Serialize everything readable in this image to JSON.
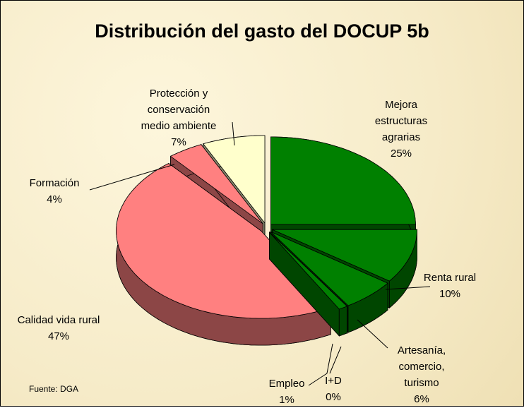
{
  "chart_data": {
    "type": "pie",
    "title": "Distribución del gasto del DOCUP 5b",
    "categories": [
      "Mejora\nestructuras\nagrarias",
      "Renta rural",
      "Artesanía,\ncomercio,\nturismo",
      "I+D",
      "Empleo",
      "Calidad vida rural",
      "Formación",
      "Protección y\nconservación\nmedio ambiente"
    ],
    "values": [
      25,
      10,
      6,
      0,
      1,
      47,
      4,
      7
    ],
    "value_labels": [
      "25%",
      "10%",
      "6%",
      "0%",
      "1%",
      "47%",
      "4%",
      "7%"
    ],
    "colors": [
      "#008000",
      "#008000",
      "#008000",
      "#008000",
      "#008000",
      "#ff8080",
      "#ff8080",
      "#ffffcc"
    ],
    "source": "Fuente: DGA"
  }
}
